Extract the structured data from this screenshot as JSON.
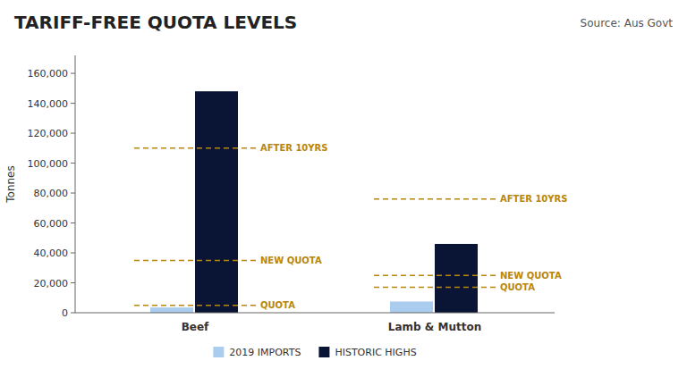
{
  "chart_data": {
    "type": "bar",
    "title": "TARIFF-FREE QUOTA LEVELS",
    "subtitle": "Source: Aus Govt",
    "ylabel": "Tonnes",
    "categories": [
      "Beef",
      "Lamb & Mutton"
    ],
    "series": [
      {
        "name": "2019 IMPORTS",
        "color": "#aaccee",
        "values": [
          3500,
          7500
        ]
      },
      {
        "name": "HISTORIC HIGHS",
        "color": "#0a1535",
        "values": [
          148000,
          46000
        ]
      }
    ],
    "annotations": [
      {
        "label": "QUOTA",
        "category": "Beef",
        "value": 5000
      },
      {
        "label": "NEW QUOTA",
        "category": "Beef",
        "value": 35000
      },
      {
        "label": "AFTER 10YRS",
        "category": "Beef",
        "value": 110000
      },
      {
        "label": "QUOTA",
        "category": "Lamb & Mutton",
        "value": 17000
      },
      {
        "label": "NEW QUOTA",
        "category": "Lamb & Mutton",
        "value": 25000
      },
      {
        "label": "AFTER 10YRS",
        "category": "Lamb & Mutton",
        "value": 76000
      }
    ],
    "ylim": [
      0,
      172000
    ],
    "yticks": [
      0,
      {
        "value": 20000,
        "label": "20,000"
      },
      {
        "value": 40000,
        "label": "40,000"
      },
      {
        "value": 60000,
        "label": "60,000"
      },
      {
        "value": 80000,
        "label": "80,000"
      },
      {
        "value": 100000,
        "label": "100,000"
      },
      {
        "value": 120000,
        "label": "120,000"
      },
      {
        "value": 140000,
        "label": "140,000"
      },
      {
        "value": 160000,
        "label": "160,000"
      }
    ],
    "grid": false,
    "legend": "bottom"
  }
}
